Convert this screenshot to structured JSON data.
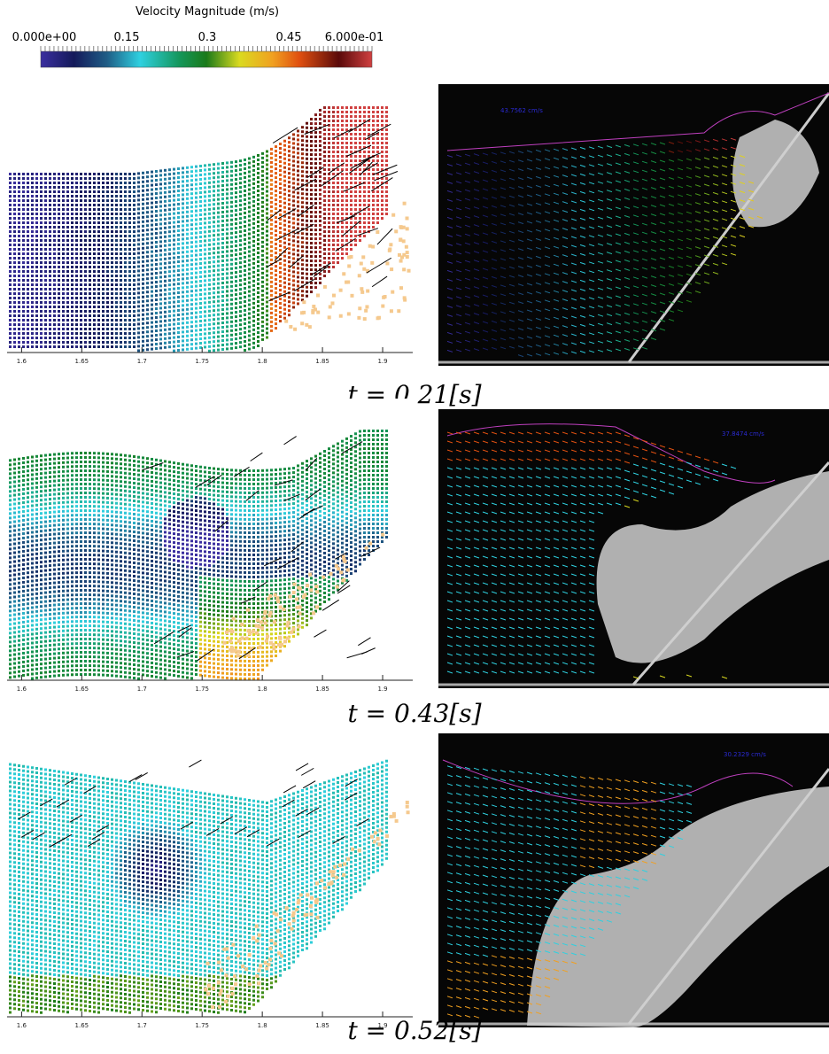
{
  "colorbar": {
    "title": "Velocity Magnitude (m/s)",
    "tick_labels": [
      "0.000e+00",
      "0.15",
      "0.3",
      "0.45",
      "6.000e-01"
    ],
    "range": [
      0,
      0.6
    ],
    "colormap": [
      "#3b2fa0",
      "#141a5a",
      "#1f5d86",
      "#2fd0e0",
      "#14965a",
      "#1a7a1a",
      "#dada20",
      "#f0a020",
      "#e05010",
      "#5a0a0a",
      "#d04040"
    ]
  },
  "x_axis_tick_labels": [
    "1.6",
    "1.65",
    "1.7",
    "1.75",
    "1.8",
    "1.85",
    "1.9"
  ],
  "x_axis_range": [
    1.585,
    1.925
  ],
  "frames": [
    {
      "id": "t1",
      "caption": "t = 0.21[s]",
      "exp_scale_label": "43.7562 cm/s"
    },
    {
      "id": "t2",
      "caption": "t = 0.43[s]",
      "exp_scale_label": "37.8474 cm/s"
    },
    {
      "id": "t3",
      "caption": "t = 0.52[s]",
      "exp_scale_label": "30.2329 cm/s"
    }
  ],
  "chart_data": {
    "type": "heatmap",
    "title": "Velocity Magnitude (m/s)",
    "x_ticks": [
      1.6,
      1.65,
      1.7,
      1.75,
      1.8,
      1.85,
      1.9
    ],
    "colorbar_range": [
      0,
      0.6
    ],
    "colorbar_ticks": [
      0,
      0.15,
      0.3,
      0.45,
      0.6
    ],
    "panels": [
      {
        "time": "t = 0.21[s]",
        "series": "simulation particles + experiment PIV"
      },
      {
        "time": "t = 0.43[s]",
        "series": "simulation particles + experiment PIV"
      },
      {
        "time": "t = 0.52[s]",
        "series": "simulation particles + experiment PIV"
      }
    ]
  }
}
